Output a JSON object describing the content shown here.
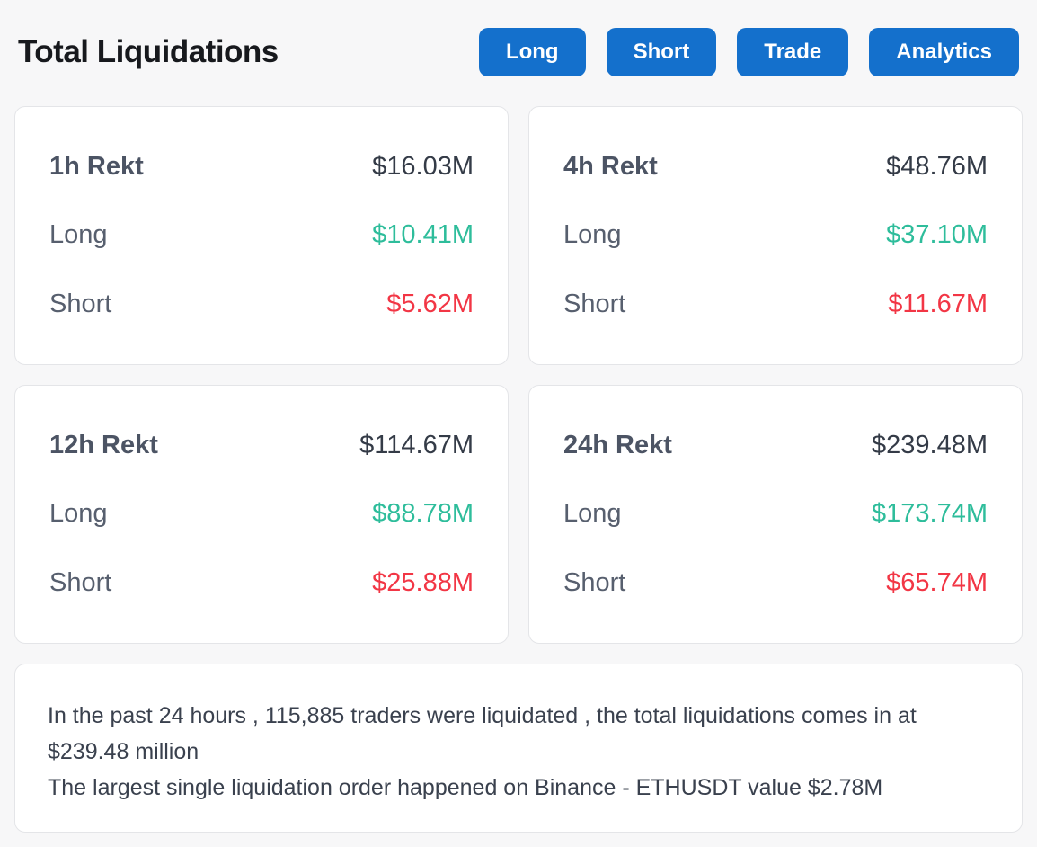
{
  "page": {
    "title": "Total Liquidations"
  },
  "nav_buttons": [
    {
      "label": "Long"
    },
    {
      "label": "Short"
    },
    {
      "label": "Trade"
    },
    {
      "label": "Analytics"
    }
  ],
  "cards": [
    {
      "period": "1h Rekt",
      "total": "$16.03M",
      "long_label": "Long",
      "long_value": "$10.41M",
      "short_label": "Short",
      "short_value": "$5.62M"
    },
    {
      "period": "4h Rekt",
      "total": "$48.76M",
      "long_label": "Long",
      "long_value": "$37.10M",
      "short_label": "Short",
      "short_value": "$11.67M"
    },
    {
      "period": "12h Rekt",
      "total": "$114.67M",
      "long_label": "Long",
      "long_value": "$88.78M",
      "short_label": "Short",
      "short_value": "$25.88M"
    },
    {
      "period": "24h Rekt",
      "total": "$239.48M",
      "long_label": "Long",
      "long_value": "$173.74M",
      "short_label": "Short",
      "short_value": "$65.74M"
    }
  ],
  "summary": {
    "line1": "In the past 24 hours , 115,885 traders were liquidated , the total liquidations comes in at $239.48 million",
    "line2": "The largest single liquidation order happened on Binance - ETHUSDT value $2.78M"
  },
  "colors": {
    "accent_blue": "#1470cc",
    "long_green": "#2ebd9b",
    "short_red": "#f23645",
    "page_background": "#f7f7f8",
    "card_background": "#ffffff"
  }
}
